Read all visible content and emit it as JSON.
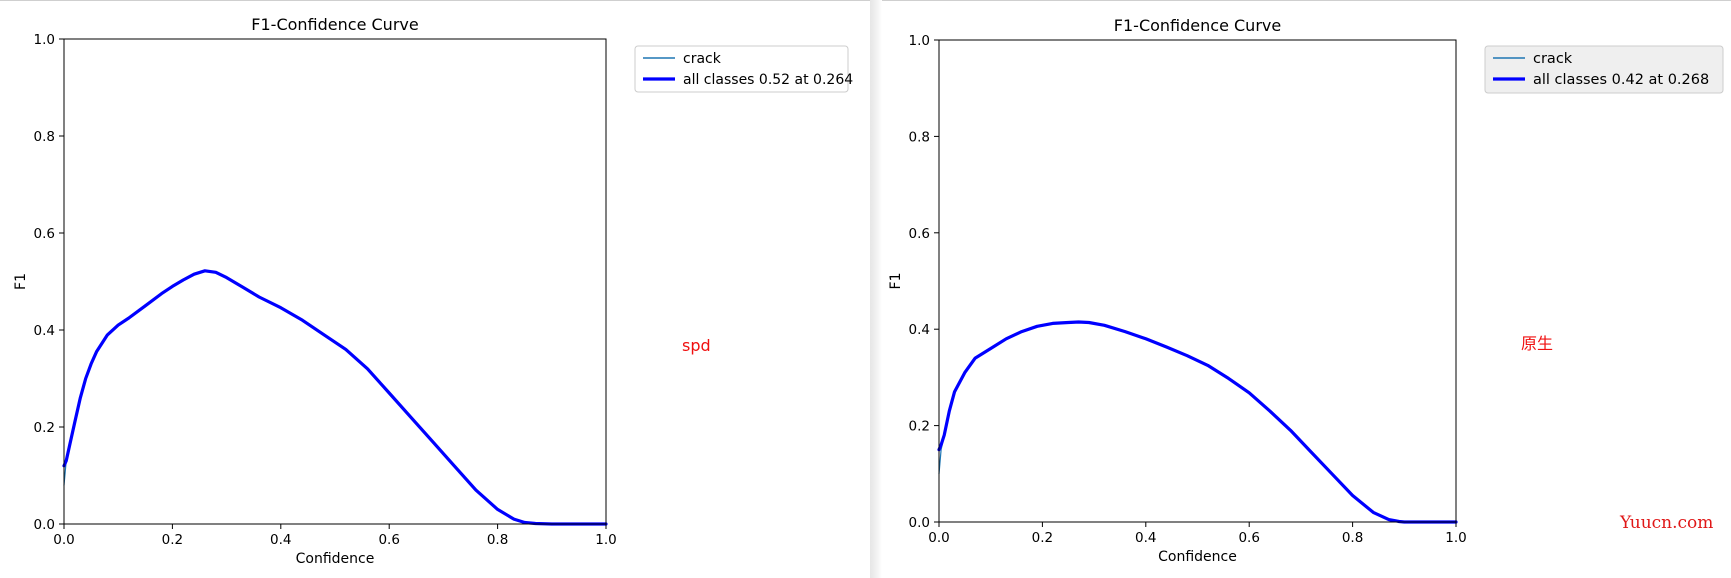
{
  "chart_data": [
    {
      "type": "line",
      "title": "F1-Confidence Curve",
      "xlabel": "Confidence",
      "ylabel": "F1",
      "xlim": [
        0,
        1
      ],
      "ylim": [
        0,
        1
      ],
      "xticks": [
        "0.0",
        "0.2",
        "0.4",
        "0.6",
        "0.8",
        "1.0"
      ],
      "yticks": [
        "0.0",
        "0.2",
        "0.4",
        "0.6",
        "0.8",
        "1.0"
      ],
      "grid": false,
      "legend_position": "outside-top-right",
      "series": [
        {
          "name": "crack",
          "color": "#1f77b4",
          "x": [
            0,
            0.004,
            0.01,
            0.02,
            0.03,
            0.04,
            0.05,
            0.06,
            0.08,
            0.1,
            0.12,
            0.15,
            0.18,
            0.2,
            0.22,
            0.24,
            0.26,
            0.28,
            0.3,
            0.33,
            0.36,
            0.4,
            0.44,
            0.48,
            0.52,
            0.56,
            0.6,
            0.64,
            0.68,
            0.72,
            0.76,
            0.8,
            0.83,
            0.85,
            0.87,
            0.9,
            0.95,
            1.0
          ],
          "y": [
            0.08,
            0.13,
            0.16,
            0.21,
            0.26,
            0.3,
            0.33,
            0.355,
            0.39,
            0.41,
            0.425,
            0.45,
            0.475,
            0.49,
            0.503,
            0.515,
            0.522,
            0.519,
            0.508,
            0.488,
            0.468,
            0.446,
            0.42,
            0.39,
            0.36,
            0.32,
            0.27,
            0.22,
            0.17,
            0.12,
            0.07,
            0.03,
            0.01,
            0.003,
            0.001,
            0,
            0,
            0
          ]
        },
        {
          "name": "all classes 0.52 at 0.264",
          "color": "#0000ff",
          "x": [
            0,
            0.004,
            0.01,
            0.02,
            0.03,
            0.04,
            0.05,
            0.06,
            0.08,
            0.1,
            0.12,
            0.15,
            0.18,
            0.2,
            0.22,
            0.24,
            0.26,
            0.28,
            0.3,
            0.33,
            0.36,
            0.4,
            0.44,
            0.48,
            0.52,
            0.56,
            0.6,
            0.64,
            0.68,
            0.72,
            0.76,
            0.8,
            0.83,
            0.85,
            0.87,
            0.9,
            0.95,
            1.0
          ],
          "y": [
            0.12,
            0.13,
            0.16,
            0.21,
            0.26,
            0.3,
            0.33,
            0.355,
            0.39,
            0.41,
            0.425,
            0.45,
            0.475,
            0.49,
            0.503,
            0.515,
            0.522,
            0.519,
            0.508,
            0.488,
            0.468,
            0.446,
            0.42,
            0.39,
            0.36,
            0.32,
            0.27,
            0.22,
            0.17,
            0.12,
            0.07,
            0.03,
            0.01,
            0.003,
            0.001,
            0,
            0,
            0
          ]
        }
      ]
    },
    {
      "type": "line",
      "title": "F1-Confidence Curve",
      "xlabel": "Confidence",
      "ylabel": "F1",
      "xlim": [
        0,
        1
      ],
      "ylim": [
        0,
        1
      ],
      "xticks": [
        "0.0",
        "0.2",
        "0.4",
        "0.6",
        "0.8",
        "1.0"
      ],
      "yticks": [
        "0.0",
        "0.2",
        "0.4",
        "0.6",
        "0.8",
        "1.0"
      ],
      "grid": false,
      "legend_position": "outside-top-right",
      "series": [
        {
          "name": "crack",
          "color": "#1f77b4",
          "x": [
            0,
            0.004,
            0.01,
            0.02,
            0.03,
            0.05,
            0.07,
            0.1,
            0.13,
            0.16,
            0.19,
            0.22,
            0.25,
            0.27,
            0.29,
            0.32,
            0.36,
            0.4,
            0.44,
            0.48,
            0.52,
            0.56,
            0.6,
            0.64,
            0.68,
            0.72,
            0.76,
            0.8,
            0.84,
            0.87,
            0.89,
            0.9,
            0.95,
            1.0
          ],
          "y": [
            0.1,
            0.15,
            0.18,
            0.23,
            0.27,
            0.31,
            0.34,
            0.36,
            0.38,
            0.395,
            0.406,
            0.412,
            0.414,
            0.415,
            0.414,
            0.408,
            0.395,
            0.38,
            0.363,
            0.345,
            0.325,
            0.298,
            0.268,
            0.23,
            0.19,
            0.145,
            0.1,
            0.055,
            0.02,
            0.005,
            0.001,
            0,
            0,
            0
          ]
        },
        {
          "name": "all classes 0.42 at 0.268",
          "color": "#0000ff",
          "x": [
            0,
            0.004,
            0.01,
            0.02,
            0.03,
            0.05,
            0.07,
            0.1,
            0.13,
            0.16,
            0.19,
            0.22,
            0.25,
            0.27,
            0.29,
            0.32,
            0.36,
            0.4,
            0.44,
            0.48,
            0.52,
            0.56,
            0.6,
            0.64,
            0.68,
            0.72,
            0.76,
            0.8,
            0.84,
            0.87,
            0.89,
            0.9,
            0.95,
            1.0
          ],
          "y": [
            0.15,
            0.16,
            0.18,
            0.23,
            0.27,
            0.31,
            0.34,
            0.36,
            0.38,
            0.395,
            0.406,
            0.412,
            0.414,
            0.415,
            0.414,
            0.408,
            0.395,
            0.38,
            0.363,
            0.345,
            0.325,
            0.298,
            0.268,
            0.23,
            0.19,
            0.145,
            0.1,
            0.055,
            0.02,
            0.005,
            0.001,
            0,
            0,
            0
          ]
        }
      ]
    }
  ],
  "annotations": {
    "left_note": "spd",
    "right_note": "原生",
    "watermark": "Yuucn.com"
  }
}
